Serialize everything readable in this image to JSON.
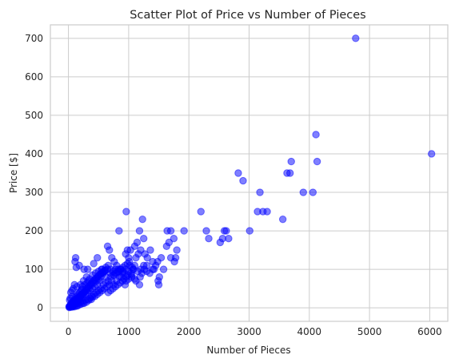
{
  "chart_data": {
    "type": "scatter",
    "title": "Scatter Plot of Price vs Number of Pieces",
    "xlabel": "Number of Pieces",
    "ylabel": "Price [$]",
    "xlim": [
      -300,
      6300
    ],
    "ylim": [
      -35,
      735
    ],
    "xticks": [
      0,
      1000,
      2000,
      3000,
      4000,
      5000,
      6000
    ],
    "yticks": [
      0,
      100,
      200,
      300,
      400,
      500,
      600,
      700
    ],
    "xtick_labels": [
      "0",
      "1000",
      "2000",
      "3000",
      "4000",
      "5000",
      "6000"
    ],
    "ytick_labels": [
      "0",
      "100",
      "200",
      "300",
      "400",
      "500",
      "600",
      "700"
    ],
    "grid": true,
    "color": "#0000ff",
    "marker_alpha": 0.5,
    "points": [
      [
        4770,
        700
      ],
      [
        6030,
        400
      ],
      [
        4110,
        450
      ],
      [
        4130,
        380
      ],
      [
        3700,
        380
      ],
      [
        3630,
        350
      ],
      [
        3680,
        350
      ],
      [
        3900,
        300
      ],
      [
        4060,
        300
      ],
      [
        3560,
        230
      ],
      [
        2820,
        350
      ],
      [
        2900,
        330
      ],
      [
        3180,
        300
      ],
      [
        3140,
        250
      ],
      [
        3230,
        250
      ],
      [
        3300,
        250
      ],
      [
        3010,
        200
      ],
      [
        2200,
        250
      ],
      [
        2290,
        200
      ],
      [
        2330,
        180
      ],
      [
        2520,
        170
      ],
      [
        2560,
        180
      ],
      [
        2590,
        200
      ],
      [
        2620,
        200
      ],
      [
        2660,
        180
      ],
      [
        1920,
        200
      ],
      [
        1640,
        200
      ],
      [
        1700,
        200
      ],
      [
        1670,
        170
      ],
      [
        1630,
        160
      ],
      [
        1750,
        180
      ],
      [
        1800,
        150
      ],
      [
        1780,
        130
      ],
      [
        1760,
        120
      ],
      [
        1700,
        130
      ],
      [
        1580,
        100
      ],
      [
        1540,
        130
      ],
      [
        1500,
        60
      ],
      [
        1490,
        70
      ],
      [
        1510,
        80
      ],
      [
        960,
        250
      ],
      [
        1230,
        230
      ],
      [
        1180,
        200
      ],
      [
        1100,
        160
      ],
      [
        1140,
        170
      ],
      [
        1200,
        150
      ],
      [
        1250,
        180
      ],
      [
        1270,
        140
      ],
      [
        1310,
        130
      ],
      [
        1360,
        150
      ],
      [
        1400,
        120
      ],
      [
        1420,
        100
      ],
      [
        1300,
        110
      ],
      [
        1220,
        90
      ],
      [
        1260,
        100
      ],
      [
        1190,
        80
      ],
      [
        1180,
        60
      ],
      [
        1120,
        70
      ],
      [
        1070,
        100
      ],
      [
        1000,
        130
      ],
      [
        1010,
        120
      ],
      [
        1030,
        150
      ],
      [
        980,
        150
      ],
      [
        950,
        140
      ],
      [
        840,
        200
      ],
      [
        650,
        160
      ],
      [
        680,
        150
      ],
      [
        720,
        130
      ],
      [
        760,
        120
      ],
      [
        800,
        110
      ],
      [
        830,
        100
      ],
      [
        870,
        100
      ],
      [
        900,
        95
      ],
      [
        930,
        90
      ],
      [
        960,
        80
      ],
      [
        990,
        85
      ],
      [
        1040,
        90
      ],
      [
        1080,
        100
      ],
      [
        1100,
        110
      ],
      [
        780,
        100
      ],
      [
        700,
        90
      ],
      [
        650,
        100
      ],
      [
        600,
        95
      ],
      [
        620,
        80
      ],
      [
        580,
        90
      ],
      [
        560,
        100
      ],
      [
        540,
        80
      ],
      [
        520,
        70
      ],
      [
        500,
        75
      ],
      [
        480,
        60
      ],
      [
        460,
        70
      ],
      [
        440,
        55
      ],
      [
        420,
        65
      ],
      [
        400,
        50
      ],
      [
        380,
        60
      ],
      [
        360,
        45
      ],
      [
        340,
        50
      ],
      [
        320,
        40
      ],
      [
        300,
        45
      ],
      [
        280,
        35
      ],
      [
        260,
        40
      ],
      [
        240,
        30
      ],
      [
        220,
        35
      ],
      [
        200,
        25
      ],
      [
        180,
        30
      ],
      [
        160,
        20
      ],
      [
        140,
        25
      ],
      [
        120,
        18
      ],
      [
        100,
        15
      ],
      [
        80,
        12
      ],
      [
        60,
        10
      ],
      [
        40,
        8
      ],
      [
        20,
        5
      ],
      [
        10,
        3
      ],
      [
        30,
        6
      ],
      [
        50,
        9
      ],
      [
        70,
        7
      ],
      [
        90,
        11
      ],
      [
        110,
        14
      ],
      [
        130,
        16
      ],
      [
        150,
        22
      ],
      [
        170,
        24
      ],
      [
        190,
        28
      ],
      [
        210,
        32
      ],
      [
        230,
        36
      ],
      [
        250,
        38
      ],
      [
        270,
        42
      ],
      [
        290,
        48
      ],
      [
        310,
        52
      ],
      [
        330,
        55
      ],
      [
        350,
        58
      ],
      [
        370,
        62
      ],
      [
        390,
        66
      ],
      [
        410,
        70
      ],
      [
        430,
        72
      ],
      [
        450,
        76
      ],
      [
        470,
        78
      ],
      [
        490,
        82
      ],
      [
        510,
        85
      ],
      [
        530,
        88
      ],
      [
        550,
        90
      ],
      [
        570,
        92
      ],
      [
        590,
        95
      ],
      [
        610,
        98
      ],
      [
        120,
        130
      ],
      [
        110,
        120
      ],
      [
        130,
        105
      ],
      [
        180,
        110
      ],
      [
        260,
        100
      ],
      [
        320,
        100
      ],
      [
        480,
        130
      ],
      [
        420,
        115
      ],
      [
        100,
        60
      ],
      [
        140,
        55
      ],
      [
        80,
        50
      ],
      [
        60,
        45
      ],
      [
        40,
        40
      ],
      [
        60,
        30
      ],
      [
        30,
        25
      ],
      [
        20,
        20
      ],
      [
        200,
        60
      ],
      [
        250,
        70
      ],
      [
        300,
        80
      ],
      [
        350,
        75
      ],
      [
        230,
        55
      ],
      [
        270,
        60
      ],
      [
        310,
        65
      ],
      [
        330,
        70
      ],
      [
        400,
        85
      ],
      [
        450,
        90
      ],
      [
        500,
        95
      ],
      [
        550,
        100
      ],
      [
        620,
        105
      ],
      [
        660,
        110
      ],
      [
        700,
        100
      ],
      [
        740,
        95
      ],
      [
        760,
        85
      ],
      [
        800,
        90
      ],
      [
        840,
        95
      ],
      [
        880,
        80
      ],
      [
        920,
        75
      ],
      [
        960,
        70
      ],
      [
        1000,
        75
      ],
      [
        1050,
        80
      ],
      [
        720,
        70
      ],
      [
        680,
        60
      ],
      [
        640,
        55
      ],
      [
        600,
        50
      ],
      [
        560,
        45
      ],
      [
        520,
        40
      ],
      [
        480,
        35
      ],
      [
        440,
        30
      ],
      [
        400,
        28
      ],
      [
        360,
        25
      ],
      [
        320,
        22
      ],
      [
        280,
        20
      ],
      [
        240,
        18
      ],
      [
        200,
        15
      ],
      [
        160,
        12
      ],
      [
        120,
        10
      ],
      [
        90,
        8
      ],
      [
        70,
        5
      ],
      [
        50,
        4
      ],
      [
        35,
        3
      ],
      [
        25,
        2
      ],
      [
        15,
        1
      ],
      [
        45,
        12
      ],
      [
        65,
        15
      ],
      [
        85,
        18
      ],
      [
        105,
        22
      ],
      [
        125,
        28
      ],
      [
        145,
        32
      ],
      [
        165,
        36
      ],
      [
        185,
        40
      ],
      [
        205,
        44
      ],
      [
        225,
        48
      ],
      [
        750,
        60
      ],
      [
        800,
        70
      ],
      [
        850,
        80
      ],
      [
        900,
        90
      ],
      [
        950,
        100
      ],
      [
        1000,
        95
      ],
      [
        1050,
        85
      ],
      [
        1100,
        75
      ],
      [
        1150,
        95
      ],
      [
        1200,
        100
      ],
      [
        1250,
        110
      ],
      [
        1300,
        95
      ],
      [
        1350,
        90
      ],
      [
        1400,
        100
      ],
      [
        1450,
        110
      ],
      [
        1480,
        120
      ],
      [
        540,
        50
      ],
      [
        580,
        60
      ],
      [
        620,
        65
      ],
      [
        660,
        70
      ],
      [
        700,
        80
      ],
      [
        740,
        85
      ],
      [
        780,
        90
      ],
      [
        820,
        95
      ],
      [
        860,
        100
      ],
      [
        900,
        105
      ],
      [
        940,
        110
      ],
      [
        980,
        115
      ],
      [
        1020,
        110
      ],
      [
        1060,
        105
      ],
      [
        1120,
        130
      ],
      [
        1160,
        140
      ],
      [
        380,
        30
      ],
      [
        420,
        35
      ],
      [
        460,
        40
      ],
      [
        500,
        45
      ],
      [
        260,
        12
      ],
      [
        300,
        15
      ],
      [
        340,
        20
      ],
      [
        380,
        22
      ],
      [
        150,
        5
      ],
      [
        180,
        8
      ],
      [
        210,
        10
      ],
      [
        240,
        12
      ],
      [
        100,
        3
      ],
      [
        130,
        5
      ],
      [
        60,
        2
      ],
      [
        80,
        4
      ],
      [
        660,
        40
      ],
      [
        700,
        45
      ],
      [
        740,
        50
      ],
      [
        780,
        55
      ],
      [
        820,
        60
      ],
      [
        860,
        65
      ],
      [
        900,
        70
      ],
      [
        940,
        60
      ]
    ]
  }
}
